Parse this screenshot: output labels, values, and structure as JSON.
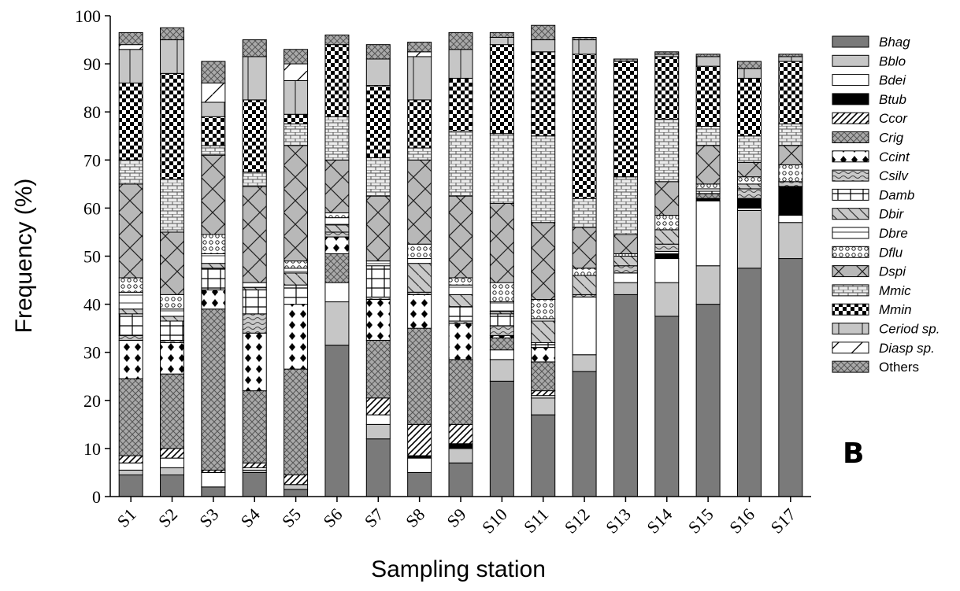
{
  "chart_data": {
    "type": "bar",
    "stacked": true,
    "ylabel": "Frequency (%)",
    "xlabel": "Sampling station",
    "ylim": [
      0,
      100
    ],
    "yticks": [
      0,
      10,
      20,
      30,
      40,
      50,
      60,
      70,
      80,
      90,
      100
    ],
    "panel_label": "B",
    "legend_position": "right",
    "categories": [
      "S1",
      "S2",
      "S3",
      "S4",
      "S5",
      "S6",
      "S7",
      "S8",
      "S9",
      "S10",
      "S11",
      "S12",
      "S13",
      "S14",
      "S15",
      "S16",
      "S17"
    ],
    "series": [
      {
        "name": "Bhag",
        "italic": true,
        "pattern": "solid-dark",
        "values": [
          4.5,
          4.5,
          2,
          5,
          1.5,
          31.5,
          12,
          5,
          7,
          24,
          17,
          26,
          42,
          37.5,
          40,
          47.5,
          49.5
        ]
      },
      {
        "name": "Bblo",
        "italic": true,
        "pattern": "solid-light",
        "values": [
          1,
          1.5,
          0,
          0.5,
          1,
          9,
          3,
          0,
          3,
          4.5,
          3.5,
          3.5,
          2.5,
          7,
          8,
          12,
          7.5
        ]
      },
      {
        "name": "Bdei",
        "italic": true,
        "pattern": "white",
        "values": [
          1.5,
          2,
          3,
          0.5,
          0,
          4,
          2,
          3,
          0,
          2,
          0.5,
          12,
          2,
          5,
          13.5,
          0.5,
          1.5
        ]
      },
      {
        "name": "Btub",
        "italic": true,
        "pattern": "black",
        "values": [
          0,
          0,
          0,
          0,
          0,
          0,
          0,
          0.5,
          1,
          0,
          0,
          0,
          0,
          1,
          0.5,
          2,
          6
        ]
      },
      {
        "name": "Ccor",
        "italic": true,
        "pattern": "diag-hatch",
        "values": [
          1.5,
          2,
          0.5,
          1,
          2,
          0,
          3.5,
          6.5,
          4,
          0,
          1,
          0,
          0,
          0,
          0,
          0,
          0
        ]
      },
      {
        "name": "Crig",
        "italic": true,
        "pattern": "crosshatch-gray",
        "values": [
          16,
          15.5,
          33.5,
          15,
          22,
          6,
          12,
          20,
          13.5,
          2.5,
          6,
          0,
          0,
          0,
          1,
          0,
          0
        ]
      },
      {
        "name": "Ccint",
        "italic": true,
        "pattern": "diamonds",
        "values": [
          8,
          6.5,
          4,
          12,
          13.5,
          3.5,
          8.5,
          7,
          7.5,
          0.5,
          3,
          0,
          0,
          0.5,
          0,
          0,
          0
        ]
      },
      {
        "name": "Csilv",
        "italic": true,
        "pattern": "waves",
        "values": [
          1,
          0.5,
          0,
          4,
          0,
          1,
          0.5,
          0.5,
          0.5,
          2,
          0,
          0.5,
          1.5,
          1.5,
          0,
          2,
          1
        ]
      },
      {
        "name": "Damb",
        "italic": true,
        "pattern": "grid",
        "values": [
          4.5,
          4,
          4.5,
          5,
          4,
          0,
          6.5,
          0,
          3,
          2.5,
          1,
          0,
          0,
          0,
          0.5,
          0,
          0
        ]
      },
      {
        "name": "Dbir",
        "italic": true,
        "pattern": "diag-light",
        "values": [
          1,
          1,
          1,
          0.5,
          2.5,
          1.5,
          0,
          6,
          2.5,
          0.5,
          4.5,
          4,
          2,
          3,
          0,
          1,
          0
        ]
      },
      {
        "name": "Dbre",
        "italic": true,
        "pattern": "white-lined",
        "values": [
          3.5,
          1.5,
          2,
          1,
          1,
          1.5,
          1,
          1,
          2,
          2,
          0.5,
          0,
          0,
          0,
          0.5,
          0,
          0
        ]
      },
      {
        "name": "Dflu",
        "italic": true,
        "pattern": "dots",
        "values": [
          3,
          3,
          4,
          0,
          1.5,
          1,
          0,
          3,
          1.5,
          4,
          4,
          1.5,
          0.5,
          3,
          1,
          1.5,
          3.5
        ]
      },
      {
        "name": "Dspi",
        "italic": true,
        "pattern": "x-hatch",
        "values": [
          19.5,
          13,
          16.5,
          20,
          24,
          11,
          13.5,
          17.5,
          17,
          16.5,
          16,
          8.5,
          4,
          7,
          8,
          3,
          4
        ]
      },
      {
        "name": "Mmic",
        "italic": true,
        "pattern": "bricks",
        "values": [
          5,
          11,
          2,
          3,
          4.5,
          9,
          8,
          2.5,
          13.5,
          14.5,
          18,
          6,
          12,
          13,
          4,
          5.5,
          4.5
        ]
      },
      {
        "name": "Mmin",
        "italic": true,
        "pattern": "checker",
        "values": [
          16,
          22,
          6,
          15,
          2,
          15,
          15,
          10,
          11,
          18.5,
          17.5,
          30,
          24,
          13,
          12.5,
          12,
          13
        ]
      },
      {
        "name": "Ceriod sp.",
        "italic": true,
        "pattern": "solid-light-vline",
        "values": [
          7,
          7,
          3,
          9,
          7,
          0,
          5.5,
          9,
          6,
          1.5,
          2.5,
          3,
          0,
          0.5,
          2,
          2,
          1
        ]
      },
      {
        "name": "Diasp sp.",
        "italic": true,
        "pattern": "white-diag",
        "values": [
          1,
          0,
          4,
          0,
          3.5,
          0,
          0,
          1,
          0,
          0,
          0,
          0,
          0,
          0,
          0,
          0,
          0
        ]
      },
      {
        "name": "Others",
        "italic": false,
        "pattern": "crosshatch-gray",
        "values": [
          2.5,
          2.5,
          4.5,
          3.5,
          3,
          2,
          3,
          2,
          3.5,
          1,
          3,
          0.5,
          0.5,
          0.5,
          0.5,
          1.5,
          0.5
        ]
      }
    ]
  }
}
